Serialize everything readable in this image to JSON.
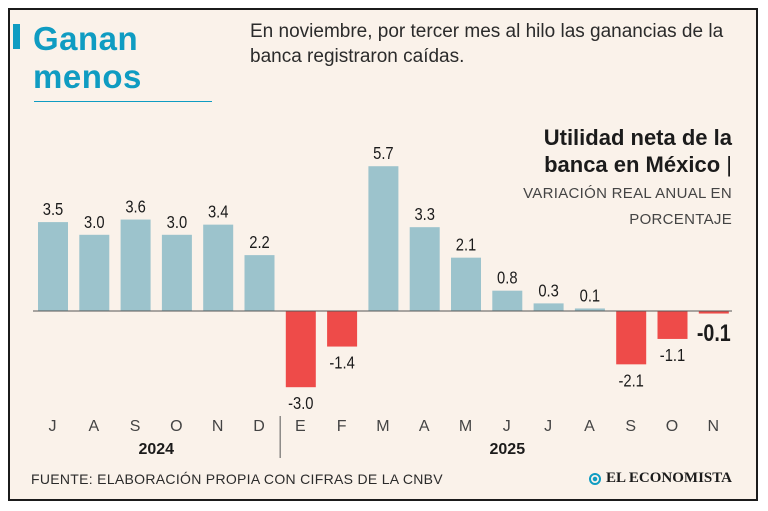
{
  "headline": {
    "line1": "Ganan",
    "line2": "menos"
  },
  "subtitle": "En noviembre, por tercer mes al hilo las ganancias de la banca registraron caídas.",
  "chart_title": {
    "line1": "Utilidad neta de la",
    "line2": "banca en México",
    "separator": "|"
  },
  "chart_subtitle": "VARIACIÓN REAL ANUAL EN PORCENTAJE",
  "source": "FUENTE: ELABORACIÓN PROPIA CON CIFRAS DE LA CNBV",
  "brand": "EL ECONOMISTA",
  "colors": {
    "positive": "#9cc3cc",
    "negative": "#ee4b49",
    "accent": "#0f9cc2",
    "background": "#faf2ea"
  },
  "chart_data": {
    "type": "bar",
    "title": "Utilidad neta de la banca en México",
    "ylabel": "Variación real anual en porcentaje",
    "categories": [
      "J",
      "A",
      "S",
      "O",
      "N",
      "D",
      "E",
      "F",
      "M",
      "A",
      "M",
      "J",
      "J",
      "A",
      "S",
      "O",
      "N"
    ],
    "values": [
      3.5,
      3.0,
      3.6,
      3.0,
      3.4,
      2.2,
      -3.0,
      -1.4,
      5.7,
      3.3,
      2.1,
      0.8,
      0.3,
      0.1,
      -2.1,
      -1.1,
      -0.1
    ],
    "labels": [
      "3.5",
      "3.0",
      "3.6",
      "3.0",
      "3.4",
      "2.2",
      "-3.0",
      "-1.4",
      "5.7",
      "3.3",
      "2.1",
      "0.8",
      "0.3",
      "0.1",
      "-2.1",
      "-1.1",
      "-0.1"
    ],
    "highlight_index": 16,
    "years": [
      {
        "label": "2024",
        "start": 0,
        "end": 5
      },
      {
        "label": "2025",
        "start": 6,
        "end": 16
      }
    ],
    "ylim": [
      -3.2,
      6.0
    ],
    "grid": false
  }
}
